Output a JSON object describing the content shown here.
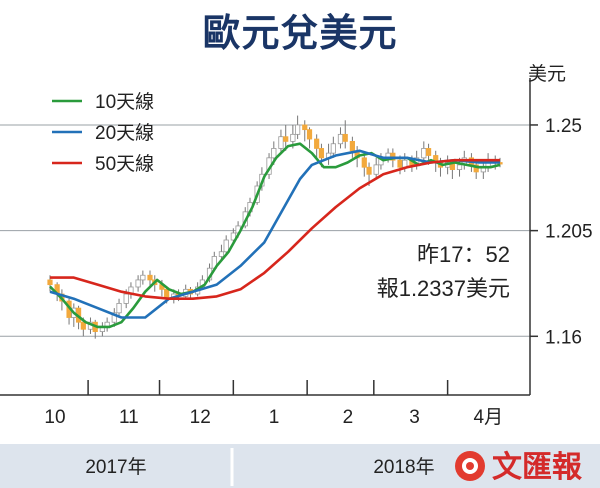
{
  "chart_data": {
    "type": "candlestick-line",
    "title": "歐元兌美元",
    "ylabel": "美元",
    "ylim": [
      1.135,
      1.27
    ],
    "y_ticks": [
      {
        "value": 1.25,
        "label": "1.25"
      },
      {
        "value": 1.205,
        "label": "1.205"
      },
      {
        "value": 1.16,
        "label": "1.16"
      }
    ],
    "x_ticks": [
      "10",
      "11",
      "12",
      "1",
      "2",
      "3",
      "4月"
    ],
    "x_tick_days": [
      0,
      31,
      61,
      92,
      123,
      151,
      182
    ],
    "x_range_days": [
      0,
      195
    ],
    "years": [
      {
        "label": "2017年",
        "start_day": 0,
        "end_day": 92
      },
      {
        "label": "2018年",
        "start_day": 92,
        "end_day": 195
      }
    ],
    "annotation": {
      "line1": "昨17：52",
      "line2": "報1.2337美元"
    },
    "legend_position": "top-left",
    "series": [
      {
        "name": "10天線",
        "color": "#2a9b3c",
        "points": [
          [
            0,
            1.1812
          ],
          [
            5,
            1.176
          ],
          [
            10,
            1.17
          ],
          [
            15,
            1.166
          ],
          [
            20,
            1.164
          ],
          [
            25,
            1.164
          ],
          [
            30,
            1.166
          ],
          [
            35,
            1.172
          ],
          [
            40,
            1.179
          ],
          [
            45,
            1.184
          ],
          [
            50,
            1.18
          ],
          [
            55,
            1.178
          ],
          [
            60,
            1.179
          ],
          [
            65,
            1.182
          ],
          [
            70,
            1.19
          ],
          [
            75,
            1.196
          ],
          [
            80,
            1.205
          ],
          [
            85,
            1.215
          ],
          [
            90,
            1.228
          ],
          [
            95,
            1.236
          ],
          [
            100,
            1.241
          ],
          [
            105,
            1.242
          ],
          [
            110,
            1.238
          ],
          [
            115,
            1.232
          ],
          [
            120,
            1.232
          ],
          [
            125,
            1.234
          ],
          [
            130,
            1.237
          ],
          [
            135,
            1.238
          ],
          [
            140,
            1.235
          ],
          [
            145,
            1.236
          ],
          [
            150,
            1.236
          ],
          [
            155,
            1.233
          ],
          [
            160,
            1.235
          ],
          [
            165,
            1.233
          ],
          [
            170,
            1.234
          ],
          [
            175,
            1.233
          ],
          [
            180,
            1.232
          ],
          [
            185,
            1.232
          ],
          [
            189,
            1.233
          ]
        ]
      },
      {
        "name": "20天線",
        "color": "#2271b8",
        "points": [
          [
            0,
            1.179
          ],
          [
            10,
            1.176
          ],
          [
            20,
            1.172
          ],
          [
            30,
            1.168
          ],
          [
            40,
            1.168
          ],
          [
            50,
            1.176
          ],
          [
            60,
            1.179
          ],
          [
            70,
            1.182
          ],
          [
            80,
            1.19
          ],
          [
            90,
            1.2
          ],
          [
            100,
            1.218
          ],
          [
            105,
            1.227
          ],
          [
            110,
            1.233
          ],
          [
            115,
            1.235
          ],
          [
            120,
            1.237
          ],
          [
            130,
            1.239
          ],
          [
            140,
            1.236
          ],
          [
            150,
            1.236
          ],
          [
            160,
            1.234
          ],
          [
            170,
            1.235
          ],
          [
            180,
            1.234
          ],
          [
            189,
            1.234
          ]
        ]
      },
      {
        "name": "50天線",
        "color": "#d7261c",
        "points": [
          [
            0,
            1.185
          ],
          [
            10,
            1.185
          ],
          [
            20,
            1.182
          ],
          [
            30,
            1.179
          ],
          [
            40,
            1.177
          ],
          [
            50,
            1.176
          ],
          [
            60,
            1.176
          ],
          [
            70,
            1.177
          ],
          [
            80,
            1.18
          ],
          [
            90,
            1.187
          ],
          [
            100,
            1.196
          ],
          [
            110,
            1.206
          ],
          [
            120,
            1.215
          ],
          [
            130,
            1.223
          ],
          [
            140,
            1.229
          ],
          [
            150,
            1.232
          ],
          [
            160,
            1.234
          ],
          [
            170,
            1.235
          ],
          [
            180,
            1.235
          ],
          [
            189,
            1.235
          ]
        ]
      }
    ],
    "candles": [
      [
        0,
        1.184,
        1.182,
        1.186,
        1.179
      ],
      [
        3,
        1.182,
        1.178,
        1.183,
        1.175
      ],
      [
        5,
        1.178,
        1.175,
        1.18,
        1.171
      ],
      [
        8,
        1.175,
        1.168,
        1.176,
        1.165
      ],
      [
        10,
        1.168,
        1.172,
        1.174,
        1.164
      ],
      [
        12,
        1.172,
        1.166,
        1.173,
        1.163
      ],
      [
        14,
        1.166,
        1.163,
        1.168,
        1.16
      ],
      [
        17,
        1.163,
        1.166,
        1.168,
        1.161
      ],
      [
        19,
        1.166,
        1.162,
        1.167,
        1.159
      ],
      [
        22,
        1.162,
        1.164,
        1.166,
        1.16
      ],
      [
        24,
        1.164,
        1.166,
        1.168,
        1.162
      ],
      [
        27,
        1.166,
        1.17,
        1.172,
        1.164
      ],
      [
        29,
        1.17,
        1.174,
        1.176,
        1.168
      ],
      [
        32,
        1.174,
        1.178,
        1.18,
        1.172
      ],
      [
        34,
        1.178,
        1.181,
        1.183,
        1.176
      ],
      [
        37,
        1.181,
        1.184,
        1.186,
        1.179
      ],
      [
        39,
        1.184,
        1.186,
        1.188,
        1.182
      ],
      [
        42,
        1.186,
        1.184,
        1.188,
        1.181
      ],
      [
        44,
        1.184,
        1.182,
        1.186,
        1.179
      ],
      [
        47,
        1.182,
        1.18,
        1.184,
        1.177
      ],
      [
        49,
        1.18,
        1.176,
        1.181,
        1.174
      ],
      [
        52,
        1.176,
        1.178,
        1.18,
        1.174
      ],
      [
        54,
        1.178,
        1.177,
        1.18,
        1.175
      ],
      [
        57,
        1.177,
        1.18,
        1.182,
        1.176
      ],
      [
        59,
        1.18,
        1.178,
        1.181,
        1.176
      ],
      [
        62,
        1.178,
        1.181,
        1.183,
        1.177
      ],
      [
        64,
        1.181,
        1.184,
        1.186,
        1.18
      ],
      [
        67,
        1.184,
        1.189,
        1.191,
        1.183
      ],
      [
        69,
        1.189,
        1.194,
        1.196,
        1.188
      ],
      [
        72,
        1.194,
        1.196,
        1.199,
        1.192
      ],
      [
        74,
        1.196,
        1.201,
        1.203,
        1.195
      ],
      [
        77,
        1.201,
        1.204,
        1.206,
        1.199
      ],
      [
        79,
        1.204,
        1.207,
        1.209,
        1.202
      ],
      [
        82,
        1.207,
        1.213,
        1.215,
        1.206
      ],
      [
        84,
        1.213,
        1.217,
        1.219,
        1.211
      ],
      [
        87,
        1.217,
        1.224,
        1.226,
        1.216
      ],
      [
        89,
        1.224,
        1.229,
        1.232,
        1.222
      ],
      [
        92,
        1.229,
        1.236,
        1.238,
        1.227
      ],
      [
        94,
        1.236,
        1.24,
        1.243,
        1.233
      ],
      [
        97,
        1.24,
        1.245,
        1.248,
        1.238
      ],
      [
        99,
        1.245,
        1.243,
        1.25,
        1.239
      ],
      [
        102,
        1.243,
        1.246,
        1.25,
        1.24
      ],
      [
        104,
        1.246,
        1.25,
        1.254,
        1.244
      ],
      [
        107,
        1.25,
        1.248,
        1.252,
        1.243
      ],
      [
        109,
        1.248,
        1.244,
        1.249,
        1.24
      ],
      [
        112,
        1.244,
        1.24,
        1.246,
        1.236
      ],
      [
        114,
        1.24,
        1.236,
        1.242,
        1.232
      ],
      [
        117,
        1.236,
        1.238,
        1.242,
        1.233
      ],
      [
        119,
        1.238,
        1.242,
        1.245,
        1.236
      ],
      [
        122,
        1.242,
        1.246,
        1.249,
        1.24
      ],
      [
        124,
        1.246,
        1.243,
        1.252,
        1.24
      ],
      [
        127,
        1.243,
        1.239,
        1.245,
        1.236
      ],
      [
        129,
        1.239,
        1.236,
        1.241,
        1.232
      ],
      [
        132,
        1.236,
        1.232,
        1.238,
        1.228
      ],
      [
        134,
        1.232,
        1.229,
        1.234,
        1.224
      ],
      [
        137,
        1.229,
        1.233,
        1.236,
        1.227
      ],
      [
        139,
        1.233,
        1.236,
        1.238,
        1.231
      ],
      [
        142,
        1.236,
        1.238,
        1.24,
        1.234
      ],
      [
        144,
        1.238,
        1.235,
        1.24,
        1.232
      ],
      [
        147,
        1.235,
        1.232,
        1.237,
        1.229
      ],
      [
        149,
        1.232,
        1.235,
        1.238,
        1.23
      ],
      [
        152,
        1.235,
        1.233,
        1.237,
        1.23
      ],
      [
        154,
        1.233,
        1.236,
        1.239,
        1.231
      ],
      [
        157,
        1.236,
        1.24,
        1.243,
        1.234
      ],
      [
        159,
        1.24,
        1.237,
        1.242,
        1.233
      ],
      [
        162,
        1.237,
        1.234,
        1.239,
        1.23
      ],
      [
        164,
        1.234,
        1.232,
        1.236,
        1.228
      ],
      [
        167,
        1.232,
        1.234,
        1.237,
        1.229
      ],
      [
        169,
        1.234,
        1.231,
        1.235,
        1.227
      ],
      [
        172,
        1.231,
        1.233,
        1.236,
        1.228
      ],
      [
        174,
        1.233,
        1.236,
        1.239,
        1.231
      ],
      [
        177,
        1.236,
        1.233,
        1.238,
        1.23
      ],
      [
        179,
        1.233,
        1.23,
        1.234,
        1.227
      ],
      [
        182,
        1.23,
        1.232,
        1.235,
        1.227
      ],
      [
        184,
        1.232,
        1.235,
        1.238,
        1.23
      ],
      [
        187,
        1.235,
        1.234,
        1.237,
        1.231
      ],
      [
        189,
        1.234,
        1.2337,
        1.236,
        1.232
      ]
    ],
    "candle_color": "#f2a93c"
  },
  "logo": {
    "text": "文匯報",
    "color": "#d42a2a"
  }
}
